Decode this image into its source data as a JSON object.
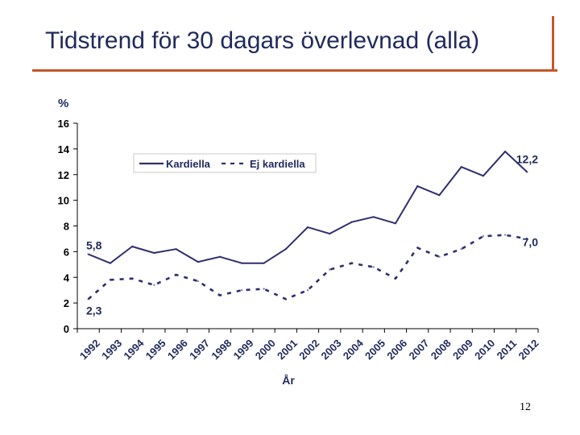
{
  "slide": {
    "title": "Tidstrend för 30 dagars överlevnad (alla)",
    "page_number": "12"
  },
  "colors": {
    "series_color": "#2e2f6e",
    "accent": "#c4572a",
    "title_color": "#1f2a5c"
  },
  "chart_data": {
    "type": "line",
    "title": "",
    "xlabel": "År",
    "ylabel": "%",
    "ylim": [
      0,
      16
    ],
    "yticks": [
      0,
      2,
      4,
      6,
      8,
      10,
      12,
      14,
      16
    ],
    "legend_position": "top-left",
    "categories": [
      "1992",
      "1993",
      "1994",
      "1995",
      "1996",
      "1997",
      "1998",
      "1999",
      "2000",
      "2001",
      "2002",
      "2003",
      "2004",
      "2005",
      "2006",
      "2007",
      "2008",
      "2009",
      "2010",
      "2011",
      "2012"
    ],
    "series": [
      {
        "name": "Kardiella",
        "style": "solid",
        "values": [
          5.8,
          5.1,
          6.4,
          5.9,
          6.2,
          5.2,
          5.6,
          5.1,
          5.1,
          6.2,
          7.9,
          7.4,
          8.3,
          8.7,
          8.2,
          11.1,
          10.4,
          12.6,
          11.9,
          13.8,
          12.2
        ]
      },
      {
        "name": "Ej kardiella",
        "style": "dashed",
        "values": [
          2.3,
          3.8,
          3.9,
          3.4,
          4.2,
          3.7,
          2.6,
          3.0,
          3.1,
          2.3,
          3.0,
          4.6,
          5.1,
          4.8,
          3.9,
          6.3,
          5.6,
          6.2,
          7.2,
          7.3,
          7.0
        ]
      }
    ],
    "annotations": [
      {
        "text": "5,8",
        "series": 0,
        "index": 0,
        "anchor": "start"
      },
      {
        "text": "2,3",
        "series": 1,
        "index": 0,
        "anchor": "start"
      },
      {
        "text": "12,2",
        "series": 0,
        "index": 20,
        "anchor": "end"
      },
      {
        "text": "7,0",
        "series": 1,
        "index": 20,
        "anchor": "end"
      }
    ]
  }
}
